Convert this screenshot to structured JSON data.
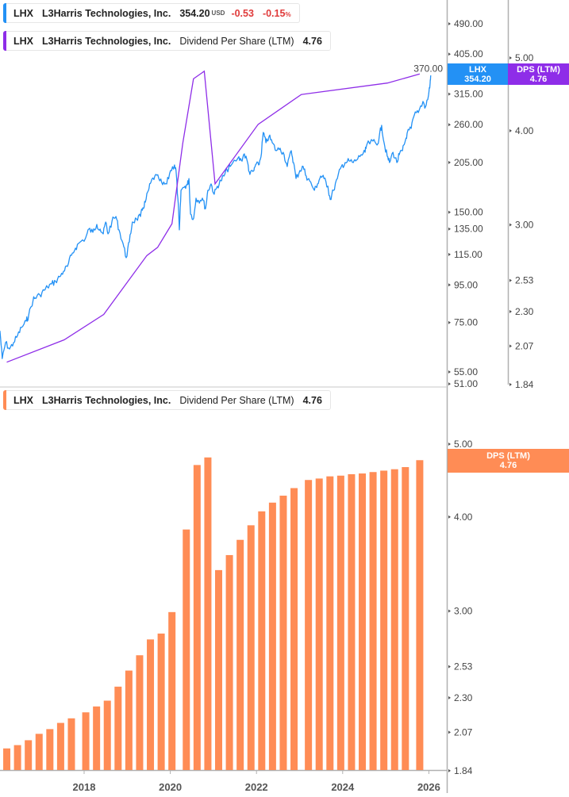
{
  "colors": {
    "price": "#2391f5",
    "dps_line": "#8e2de8",
    "dps_bars": "#ff8c55",
    "axis": "#b0b0b0"
  },
  "legend_price": {
    "ticker": "LHX",
    "company": "L3Harris Technologies, Inc.",
    "price": "354.20",
    "currency": "USD",
    "change": "-0.53",
    "change_pct": "-0.15",
    "pct_sign": "%"
  },
  "legend_dps_top": {
    "ticker": "LHX",
    "company": "L3Harris Technologies, Inc.",
    "metric": "Dividend Per Share (LTM)",
    "value": "4.76"
  },
  "legend_dps_bottom": {
    "ticker": "LHX",
    "company": "L3Harris Technologies, Inc.",
    "metric": "Dividend Per Share (LTM)",
    "value": "4.76"
  },
  "tags": {
    "price_name": "LHX",
    "price_value": "354.20",
    "dps_name": "DPS (LTM)",
    "dps_value": "4.76",
    "dps_bottom_name": "DPS (LTM)",
    "dps_bottom_value": "4.76"
  },
  "chart_data": [
    {
      "type": "line",
      "scale": "log",
      "series": [
        {
          "name": "LHX",
          "axis": "price",
          "points": [
            [
              "2016-01-18",
              71.2
            ],
            [
              "2016-02-07",
              59.8
            ],
            [
              "2016-03-05",
              66.1
            ],
            [
              "2016-04-08",
              63.5
            ],
            [
              "2016-05-12",
              66.1
            ],
            [
              "2016-06-15",
              69.1
            ],
            [
              "2016-07-19",
              72.7
            ],
            [
              "2016-08-28",
              75.7
            ],
            [
              "2016-09-17",
              78.3
            ],
            [
              "2016-10-27",
              87.0
            ],
            [
              "2016-11-10",
              87.5
            ],
            [
              "2016-12-21",
              89.2
            ],
            [
              "2017-01-29",
              91.9
            ],
            [
              "2017-02-25",
              93.7
            ],
            [
              "2017-03-30",
              95.6
            ],
            [
              "2017-05-03",
              97.1
            ],
            [
              "2017-06-06",
              100.0
            ],
            [
              "2017-07-09",
              103.5
            ],
            [
              "2017-08-12",
              106.7
            ],
            [
              "2017-09-15",
              114.4
            ],
            [
              "2017-10-19",
              119.7
            ],
            [
              "2017-11-22",
              123.9
            ],
            [
              "2018-01-14",
              127.6
            ],
            [
              "2018-02-10",
              134.9
            ],
            [
              "2018-03-14",
              132.2
            ],
            [
              "2018-04-17",
              138.9
            ],
            [
              "2018-05-15",
              134.9
            ],
            [
              "2018-06-11",
              130.9
            ],
            [
              "2018-07-01",
              141.0
            ],
            [
              "2018-07-21",
              130.9
            ],
            [
              "2018-08-24",
              141.7
            ],
            [
              "2018-09-27",
              146.0
            ],
            [
              "2018-10-23",
              134.2
            ],
            [
              "2018-11-26",
              123.3
            ],
            [
              "2018-12-23",
              112.7
            ],
            [
              "2019-01-19",
              124.5
            ],
            [
              "2019-02-14",
              141.0
            ],
            [
              "2019-03-19",
              143.8
            ],
            [
              "2019-04-22",
              146.0
            ],
            [
              "2019-05-12",
              154.2
            ],
            [
              "2019-06-02",
              159.7
            ],
            [
              "2019-06-29",
              172.1
            ],
            [
              "2019-07-19",
              180.8
            ],
            [
              "2019-08-22",
              188.2
            ],
            [
              "2019-09-25",
              185.4
            ],
            [
              "2019-10-28",
              178.3
            ],
            [
              "2019-12-01",
              179.2
            ],
            [
              "2020-01-03",
              194.9
            ],
            [
              "2020-02-06",
              201.8
            ],
            [
              "2020-02-19",
              194.9
            ],
            [
              "2020-03-04",
              163.8
            ],
            [
              "2020-03-17",
              134.2
            ],
            [
              "2020-03-31",
              172.1
            ],
            [
              "2020-05-04",
              176.6
            ],
            [
              "2020-05-24",
              178.3
            ],
            [
              "2020-06-07",
              185.4
            ],
            [
              "2020-06-20",
              148.2
            ],
            [
              "2020-07-17",
              144.5
            ],
            [
              "2020-08-06",
              163.8
            ],
            [
              "2020-08-26",
              161.3
            ],
            [
              "2020-09-29",
              163.8
            ],
            [
              "2020-10-26",
              153.5
            ],
            [
              "2020-11-15",
              172.1
            ],
            [
              "2020-12-12",
              179.2
            ],
            [
              "2021-01-08",
              167.9
            ],
            [
              "2021-02-04",
              176.6
            ],
            [
              "2021-03-03",
              182.7
            ],
            [
              "2021-03-29",
              188.2
            ],
            [
              "2021-04-25",
              195.9
            ],
            [
              "2021-05-22",
              199.8
            ],
            [
              "2021-07-28",
              211.1
            ],
            [
              "2021-08-24",
              208.0
            ],
            [
              "2021-09-20",
              216.4
            ],
            [
              "2021-10-17",
              204.9
            ],
            [
              "2021-11-06",
              190.1
            ],
            [
              "2021-12-10",
              194.9
            ],
            [
              "2021-12-23",
              201.8
            ],
            [
              "2022-01-19",
              201.8
            ],
            [
              "2022-02-08",
              212.2
            ],
            [
              "2022-02-28",
              247.6
            ],
            [
              "2022-03-20",
              232.1
            ],
            [
              "2022-04-16",
              241.4
            ],
            [
              "2022-05-13",
              232.1
            ],
            [
              "2022-06-16",
              220.8
            ],
            [
              "2022-07-19",
              224.2
            ],
            [
              "2022-08-22",
              215.3
            ],
            [
              "2022-09-18",
              199.8
            ],
            [
              "2022-10-22",
              220.8
            ],
            [
              "2022-11-11",
              204.9
            ],
            [
              "2022-12-01",
              185.4
            ],
            [
              "2023-01-04",
              194.9
            ],
            [
              "2023-01-31",
              199.8
            ],
            [
              "2023-02-27",
              188.2
            ],
            [
              "2023-03-25",
              182.7
            ],
            [
              "2023-05-05",
              172.1
            ],
            [
              "2023-06-01",
              179.2
            ],
            [
              "2023-06-28",
              188.2
            ],
            [
              "2023-07-25",
              185.4
            ],
            [
              "2023-08-28",
              176.6
            ],
            [
              "2023-09-17",
              162.4
            ],
            [
              "2023-10-14",
              172.1
            ],
            [
              "2023-11-17",
              185.4
            ],
            [
              "2023-12-20",
              199.8
            ],
            [
              "2024-01-22",
              204.9
            ],
            [
              "2024-02-25",
              207.0
            ],
            [
              "2024-03-30",
              204.9
            ],
            [
              "2024-04-26",
              208.0
            ],
            [
              "2024-06-05",
              215.3
            ],
            [
              "2024-07-09",
              218.6
            ],
            [
              "2024-07-22",
              228.7
            ],
            [
              "2024-09-14",
              234.5
            ],
            [
              "2024-10-18",
              228.7
            ],
            [
              "2024-11-07",
              241.4
            ],
            [
              "2024-11-27",
              258.9
            ],
            [
              "2024-12-17",
              232.1
            ],
            [
              "2025-01-13",
              213.2
            ],
            [
              "2025-02-02",
              204.9
            ],
            [
              "2025-03-01",
              218.6
            ],
            [
              "2025-04-04",
              204.9
            ],
            [
              "2025-04-24",
              215.3
            ],
            [
              "2025-05-21",
              220.8
            ],
            [
              "2025-06-10",
              232.1
            ],
            [
              "2025-06-30",
              246.4
            ],
            [
              "2025-08-03",
              253.8
            ],
            [
              "2025-08-30",
              276.3
            ],
            [
              "2025-10-03",
              280.4
            ],
            [
              "2025-11-12",
              300.8
            ],
            [
              "2025-12-02",
              290.4
            ],
            [
              "2025-12-29",
              313.0
            ],
            [
              "2026-01-12",
              337.2
            ],
            [
              "2026-01-17",
              354.2
            ]
          ]
        },
        {
          "name": "DPS (LTM)",
          "axis": "dps",
          "points": [
            [
              "2016-03",
              1.97
            ],
            [
              "2017-07",
              2.11
            ],
            [
              "2018-06",
              2.28
            ],
            [
              "2019-06",
              2.73
            ],
            [
              "2019-09",
              2.8
            ],
            [
              "2020-01",
              3.01
            ],
            [
              "2020-04",
              3.85
            ],
            [
              "2020-07",
              4.69
            ],
            [
              "2020-10",
              4.8
            ],
            [
              "2021-01",
              3.4
            ],
            [
              "2022-01",
              4.08
            ],
            [
              "2023-01",
              4.47
            ],
            [
              "2025-01",
              4.63
            ],
            [
              "2025-10",
              4.76
            ]
          ]
        }
      ],
      "price_axis": {
        "ticks": [
          490,
          405,
          370,
          315,
          260,
          205,
          150,
          135,
          115,
          95,
          75,
          55,
          51
        ],
        "range": [
          51,
          490
        ]
      },
      "dps_axis": {
        "ticks": [
          5.0,
          4.0,
          3.0,
          2.53,
          2.3,
          2.07,
          1.84
        ],
        "range": [
          1.84,
          5.0
        ]
      },
      "grid": false
    },
    {
      "type": "bar",
      "scale": "log",
      "series": [
        {
          "name": "DPS (LTM)",
          "points": [
            [
              "2016-03",
              1.97
            ],
            [
              "2016-06",
              1.99
            ],
            [
              "2016-09",
              2.02
            ],
            [
              "2016-12",
              2.06
            ],
            [
              "2017-03",
              2.09
            ],
            [
              "2017-06",
              2.13
            ],
            [
              "2017-09",
              2.16
            ],
            [
              "2018-01",
              2.2
            ],
            [
              "2018-04",
              2.24
            ],
            [
              "2018-07",
              2.28
            ],
            [
              "2018-10",
              2.38
            ],
            [
              "2019-01",
              2.5
            ],
            [
              "2019-04",
              2.62
            ],
            [
              "2019-07",
              2.75
            ],
            [
              "2019-10",
              2.8
            ],
            [
              "2020-01",
              2.99
            ],
            [
              "2020-05",
              3.85
            ],
            [
              "2020-08",
              4.69
            ],
            [
              "2020-11",
              4.8
            ],
            [
              "2021-02",
              3.4
            ],
            [
              "2021-05",
              3.56
            ],
            [
              "2021-08",
              3.73
            ],
            [
              "2021-11",
              3.9
            ],
            [
              "2022-02",
              4.07
            ],
            [
              "2022-05",
              4.18
            ],
            [
              "2022-08",
              4.27
            ],
            [
              "2022-11",
              4.37
            ],
            [
              "2023-03",
              4.48
            ],
            [
              "2023-06",
              4.5
            ],
            [
              "2023-09",
              4.53
            ],
            [
              "2023-12",
              4.54
            ],
            [
              "2024-03",
              4.56
            ],
            [
              "2024-06",
              4.57
            ],
            [
              "2024-09",
              4.59
            ],
            [
              "2024-12",
              4.61
            ],
            [
              "2025-03",
              4.63
            ],
            [
              "2025-06",
              4.66
            ],
            [
              "2025-10",
              4.76
            ]
          ]
        }
      ],
      "y_axis": {
        "ticks": [
          5.0,
          4.0,
          3.0,
          2.53,
          2.3,
          2.07,
          1.84
        ],
        "range": [
          1.84,
          5.0
        ]
      },
      "x_ticks": [
        "2018",
        "2020",
        "2022",
        "2024",
        "2026"
      ],
      "grid": false
    }
  ]
}
